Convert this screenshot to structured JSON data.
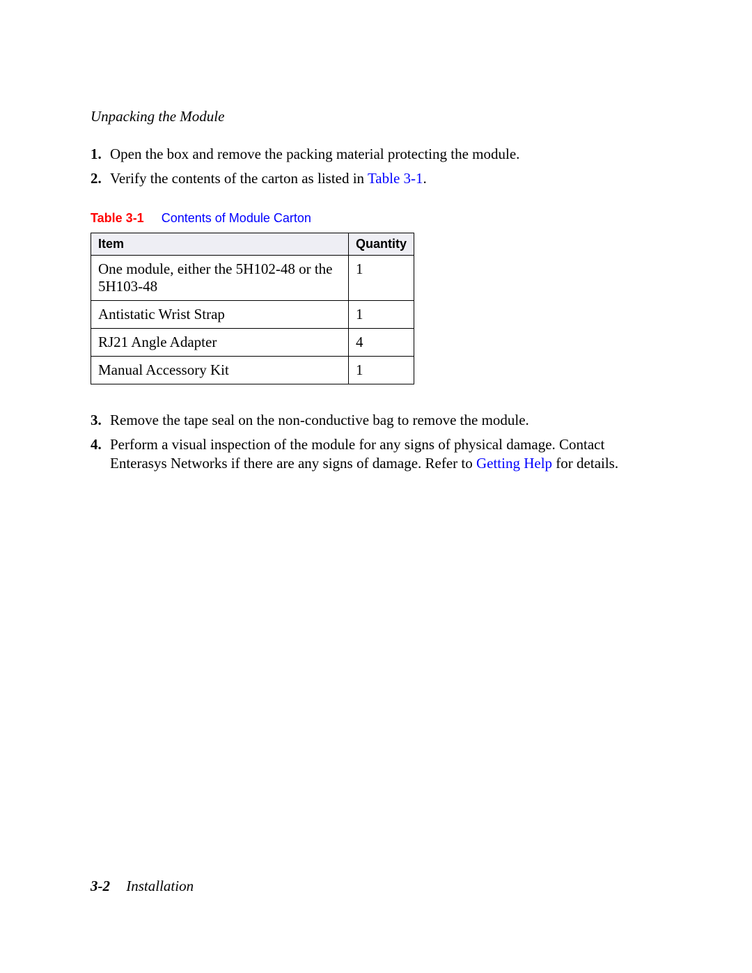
{
  "header": {
    "title": "Unpacking the Module"
  },
  "steps_top": [
    {
      "num": "1.",
      "text": "Open the box and remove the packing material protecting the module."
    },
    {
      "num": "2.",
      "text_prefix": "Verify the contents of the carton as listed in ",
      "link": "Table 3-1",
      "text_suffix": "."
    }
  ],
  "table": {
    "caption_label": "Table 3-1",
    "caption_title": "Contents of Module Carton",
    "columns": [
      "Item",
      "Quantity"
    ],
    "rows": [
      [
        "One module, either the 5H102-48 or the 5H103-48",
        "1"
      ],
      [
        "Antistatic Wrist Strap",
        "1"
      ],
      [
        "RJ21 Angle Adapter",
        "4"
      ],
      [
        "Manual Accessory Kit",
        "1"
      ]
    ]
  },
  "steps_bottom": [
    {
      "num": "3.",
      "text": "Remove the tape seal on the non-conductive bag to remove the module."
    },
    {
      "num": "4.",
      "text_prefix": "Perform a visual inspection of the module for any signs of physical damage. Contact Enterasys Networks if there are any signs of damage. Refer to ",
      "link": "Getting Help",
      "text_suffix": " for details."
    }
  ],
  "footer": {
    "page": "3-2",
    "chapter": "Installation"
  }
}
